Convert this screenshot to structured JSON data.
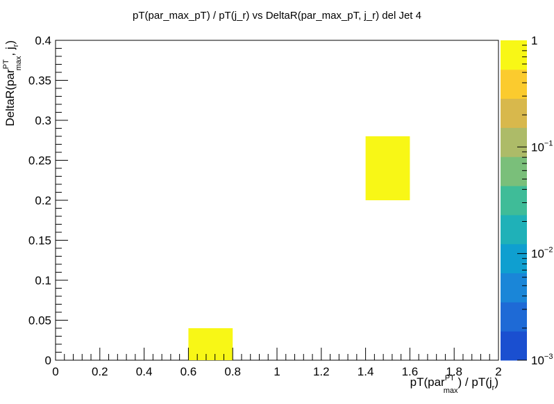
{
  "chart_data": {
    "type": "heatmap",
    "title": "pT(par_max_pT) / pT(j_r) vs DeltaR(par_max_pT, j_r) del Jet 4",
    "xlabel": {
      "pre": "pT(par",
      "sup": "PT",
      "sub": "max",
      "post": ") / pT(j",
      "sub2": "r",
      "close": ")"
    },
    "ylabel": {
      "pre": "DeltaR(par",
      "sup": "PT",
      "sub": "max",
      "post": ", j",
      "sub2": "r",
      "close": ")"
    },
    "xlim": [
      0,
      2
    ],
    "ylim": [
      0,
      0.4
    ],
    "x_ticks": [
      0,
      0.2,
      0.4,
      0.6,
      0.8,
      1,
      1.2,
      1.4,
      1.6,
      1.8,
      2
    ],
    "x_tick_labels": [
      "0",
      "0.2",
      "0.4",
      "0.6",
      "0.8",
      "1",
      "1.2",
      "1.4",
      "1.6",
      "1.8",
      "2"
    ],
    "y_ticks": [
      0,
      0.05,
      0.1,
      0.15,
      0.2,
      0.25,
      0.3,
      0.35,
      0.4
    ],
    "y_tick_labels": [
      "0",
      "0.05",
      "0.1",
      "0.15",
      "0.2",
      "0.25",
      "0.3",
      "0.35",
      "0.4"
    ],
    "cells": [
      {
        "x0": 0.6,
        "x1": 0.8,
        "y0": 0.0,
        "y1": 0.04,
        "value": 1
      },
      {
        "x0": 1.4,
        "x1": 1.6,
        "y0": 0.2,
        "y1": 0.28,
        "value": 1
      }
    ],
    "colorbar": {
      "scale": "log",
      "min": 0.001,
      "max": 1,
      "labels": [
        {
          "value": 1,
          "base": "1",
          "exp": ""
        },
        {
          "value": 0.1,
          "base": "10",
          "exp": "−1"
        },
        {
          "value": 0.01,
          "base": "10",
          "exp": "−2"
        },
        {
          "value": 0.001,
          "base": "10",
          "exp": "−3"
        }
      ],
      "colors": [
        "#1a4fd0",
        "#1e6ad6",
        "#1a86d8",
        "#0f9fd0",
        "#1fb1b8",
        "#3fbc98",
        "#7abf7a",
        "#adbb68",
        "#d8b84c",
        "#fbcb2e",
        "#f8f716"
      ]
    },
    "cell_color": "#f8f716"
  }
}
